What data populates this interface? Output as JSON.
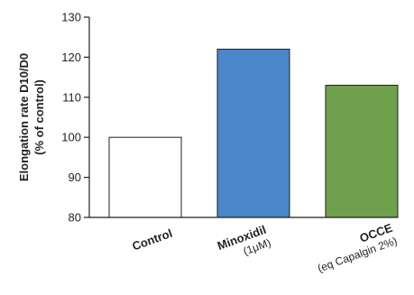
{
  "chart_data": {
    "type": "bar",
    "ylabel_line1": "Elongation rate D10/D0",
    "ylabel_line2": "(% of control)",
    "ylim": [
      80,
      130
    ],
    "yticks": [
      80,
      90,
      100,
      110,
      120,
      130
    ],
    "grid": false,
    "categories": [
      {
        "label": "Control",
        "sublabel": ""
      },
      {
        "label": "Minoxidil",
        "sublabel": "(1μM)"
      },
      {
        "label": "OCCE",
        "sublabel": "(eq Capalgin 2%)"
      }
    ],
    "values": [
      100,
      122,
      113
    ],
    "colors": [
      "#ffffff",
      "#4a86c8",
      "#6fa04b"
    ],
    "outline_color": "#231f20"
  }
}
